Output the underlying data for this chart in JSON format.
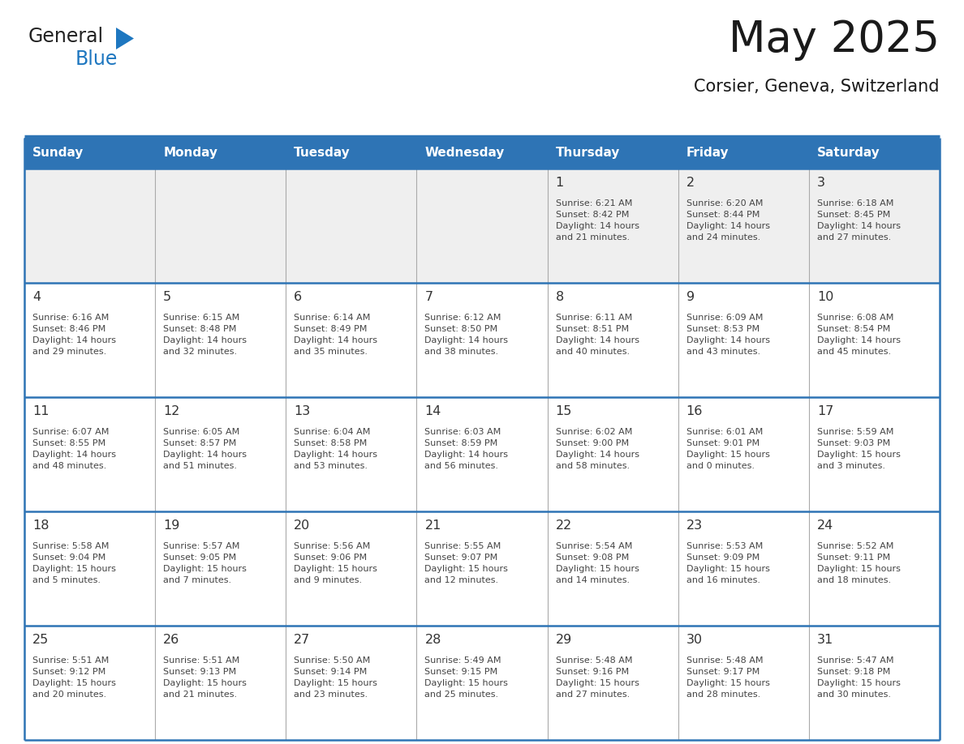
{
  "title": "May 2025",
  "subtitle": "Corsier, Geneva, Switzerland",
  "header_bg": "#2E74B5",
  "header_text_color": "#FFFFFF",
  "cell_bg_week1": "#EFEFEF",
  "cell_bg_normal": "#FFFFFF",
  "row_separator_color": "#2E74B5",
  "col_separator_color": "#AAAAAA",
  "text_color": "#444444",
  "day_number_color": "#333333",
  "day_headers": [
    "Sunday",
    "Monday",
    "Tuesday",
    "Wednesday",
    "Thursday",
    "Friday",
    "Saturday"
  ],
  "weeks": [
    [
      {
        "day": "",
        "info": ""
      },
      {
        "day": "",
        "info": ""
      },
      {
        "day": "",
        "info": ""
      },
      {
        "day": "",
        "info": ""
      },
      {
        "day": "1",
        "info": "Sunrise: 6:21 AM\nSunset: 8:42 PM\nDaylight: 14 hours\nand 21 minutes."
      },
      {
        "day": "2",
        "info": "Sunrise: 6:20 AM\nSunset: 8:44 PM\nDaylight: 14 hours\nand 24 minutes."
      },
      {
        "day": "3",
        "info": "Sunrise: 6:18 AM\nSunset: 8:45 PM\nDaylight: 14 hours\nand 27 minutes."
      }
    ],
    [
      {
        "day": "4",
        "info": "Sunrise: 6:16 AM\nSunset: 8:46 PM\nDaylight: 14 hours\nand 29 minutes."
      },
      {
        "day": "5",
        "info": "Sunrise: 6:15 AM\nSunset: 8:48 PM\nDaylight: 14 hours\nand 32 minutes."
      },
      {
        "day": "6",
        "info": "Sunrise: 6:14 AM\nSunset: 8:49 PM\nDaylight: 14 hours\nand 35 minutes."
      },
      {
        "day": "7",
        "info": "Sunrise: 6:12 AM\nSunset: 8:50 PM\nDaylight: 14 hours\nand 38 minutes."
      },
      {
        "day": "8",
        "info": "Sunrise: 6:11 AM\nSunset: 8:51 PM\nDaylight: 14 hours\nand 40 minutes."
      },
      {
        "day": "9",
        "info": "Sunrise: 6:09 AM\nSunset: 8:53 PM\nDaylight: 14 hours\nand 43 minutes."
      },
      {
        "day": "10",
        "info": "Sunrise: 6:08 AM\nSunset: 8:54 PM\nDaylight: 14 hours\nand 45 minutes."
      }
    ],
    [
      {
        "day": "11",
        "info": "Sunrise: 6:07 AM\nSunset: 8:55 PM\nDaylight: 14 hours\nand 48 minutes."
      },
      {
        "day": "12",
        "info": "Sunrise: 6:05 AM\nSunset: 8:57 PM\nDaylight: 14 hours\nand 51 minutes."
      },
      {
        "day": "13",
        "info": "Sunrise: 6:04 AM\nSunset: 8:58 PM\nDaylight: 14 hours\nand 53 minutes."
      },
      {
        "day": "14",
        "info": "Sunrise: 6:03 AM\nSunset: 8:59 PM\nDaylight: 14 hours\nand 56 minutes."
      },
      {
        "day": "15",
        "info": "Sunrise: 6:02 AM\nSunset: 9:00 PM\nDaylight: 14 hours\nand 58 minutes."
      },
      {
        "day": "16",
        "info": "Sunrise: 6:01 AM\nSunset: 9:01 PM\nDaylight: 15 hours\nand 0 minutes."
      },
      {
        "day": "17",
        "info": "Sunrise: 5:59 AM\nSunset: 9:03 PM\nDaylight: 15 hours\nand 3 minutes."
      }
    ],
    [
      {
        "day": "18",
        "info": "Sunrise: 5:58 AM\nSunset: 9:04 PM\nDaylight: 15 hours\nand 5 minutes."
      },
      {
        "day": "19",
        "info": "Sunrise: 5:57 AM\nSunset: 9:05 PM\nDaylight: 15 hours\nand 7 minutes."
      },
      {
        "day": "20",
        "info": "Sunrise: 5:56 AM\nSunset: 9:06 PM\nDaylight: 15 hours\nand 9 minutes."
      },
      {
        "day": "21",
        "info": "Sunrise: 5:55 AM\nSunset: 9:07 PM\nDaylight: 15 hours\nand 12 minutes."
      },
      {
        "day": "22",
        "info": "Sunrise: 5:54 AM\nSunset: 9:08 PM\nDaylight: 15 hours\nand 14 minutes."
      },
      {
        "day": "23",
        "info": "Sunrise: 5:53 AM\nSunset: 9:09 PM\nDaylight: 15 hours\nand 16 minutes."
      },
      {
        "day": "24",
        "info": "Sunrise: 5:52 AM\nSunset: 9:11 PM\nDaylight: 15 hours\nand 18 minutes."
      }
    ],
    [
      {
        "day": "25",
        "info": "Sunrise: 5:51 AM\nSunset: 9:12 PM\nDaylight: 15 hours\nand 20 minutes."
      },
      {
        "day": "26",
        "info": "Sunrise: 5:51 AM\nSunset: 9:13 PM\nDaylight: 15 hours\nand 21 minutes."
      },
      {
        "day": "27",
        "info": "Sunrise: 5:50 AM\nSunset: 9:14 PM\nDaylight: 15 hours\nand 23 minutes."
      },
      {
        "day": "28",
        "info": "Sunrise: 5:49 AM\nSunset: 9:15 PM\nDaylight: 15 hours\nand 25 minutes."
      },
      {
        "day": "29",
        "info": "Sunrise: 5:48 AM\nSunset: 9:16 PM\nDaylight: 15 hours\nand 27 minutes."
      },
      {
        "day": "30",
        "info": "Sunrise: 5:48 AM\nSunset: 9:17 PM\nDaylight: 15 hours\nand 28 minutes."
      },
      {
        "day": "31",
        "info": "Sunrise: 5:47 AM\nSunset: 9:18 PM\nDaylight: 15 hours\nand 30 minutes."
      }
    ]
  ],
  "logo_general_color": "#222222",
  "logo_blue_color": "#1E77C0",
  "logo_triangle_color": "#1E77C0"
}
